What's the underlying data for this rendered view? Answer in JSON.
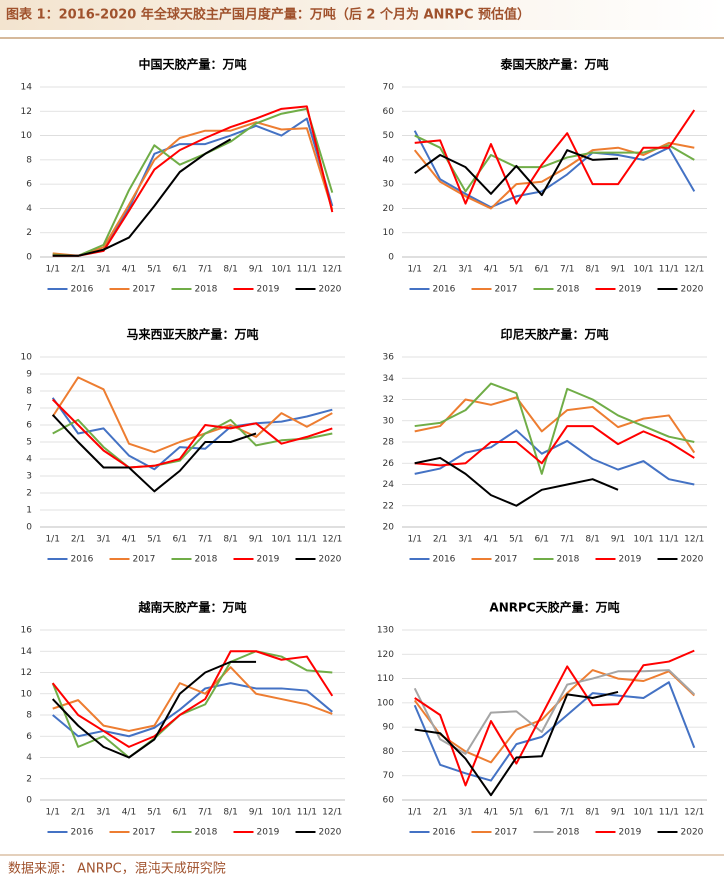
{
  "title": "图表 1：2016-2020 年全球天胶主产国月度产量：万吨（后 2 个月为 ANRPC 预估值）",
  "source": "数据来源： ANRPC，混沌天成研究院",
  "chart_data": [
    {
      "type": "line",
      "title": "中国天胶产量：万吨",
      "categories": [
        "1/1",
        "2/1",
        "3/1",
        "4/1",
        "5/1",
        "6/1",
        "7/1",
        "8/1",
        "9/1",
        "10/1",
        "11/1",
        "12/1"
      ],
      "ylim": [
        0,
        14
      ],
      "yticks": [
        0,
        2,
        4,
        6,
        8,
        10,
        12,
        14
      ],
      "grid": true,
      "legend": "bottom",
      "series": [
        {
          "name": "2016",
          "color": "#4472c4",
          "values": [
            0.2,
            0.1,
            0.6,
            4.0,
            8.5,
            9.3,
            9.3,
            10.0,
            10.8,
            10.0,
            11.4,
            4.2
          ]
        },
        {
          "name": "2017",
          "color": "#ed7d31",
          "values": [
            0.3,
            0.1,
            0.8,
            4.3,
            8.0,
            9.8,
            10.4,
            10.4,
            11.1,
            10.5,
            10.6,
            3.9
          ]
        },
        {
          "name": "2018",
          "color": "#70ad47",
          "values": [
            0.2,
            0.1,
            1.0,
            5.5,
            9.2,
            7.6,
            8.5,
            9.5,
            11.0,
            11.8,
            12.2,
            5.3
          ]
        },
        {
          "name": "2019",
          "color": "#ff0000",
          "values": [
            0.1,
            0.1,
            0.5,
            3.8,
            7.2,
            8.8,
            9.8,
            10.7,
            11.4,
            12.2,
            12.4,
            3.7
          ]
        },
        {
          "name": "2020",
          "color": "#000000",
          "values": [
            0.1,
            0.1,
            0.6,
            1.6,
            4.2,
            7.0,
            8.5,
            9.7,
            null,
            null,
            null,
            null
          ]
        }
      ]
    },
    {
      "type": "line",
      "title": "泰国天胶产量：万吨",
      "categories": [
        "1/1",
        "2/1",
        "3/1",
        "4/1",
        "5/1",
        "6/1",
        "7/1",
        "8/1",
        "9/1",
        "10/1",
        "11/1",
        "12/1"
      ],
      "ylim": [
        0,
        70
      ],
      "yticks": [
        0,
        10,
        20,
        30,
        40,
        50,
        60,
        70
      ],
      "grid": true,
      "legend": "bottom",
      "series": [
        {
          "name": "2016",
          "color": "#4472c4",
          "values": [
            52,
            32,
            26,
            20.5,
            25,
            27,
            34,
            43,
            42,
            40,
            45,
            27
          ]
        },
        {
          "name": "2017",
          "color": "#ed7d31",
          "values": [
            44,
            31,
            25,
            20,
            30,
            31,
            37,
            44,
            45,
            42,
            47,
            45
          ]
        },
        {
          "name": "2018",
          "color": "#70ad47",
          "values": [
            50,
            45,
            27,
            42,
            37,
            37,
            41,
            43,
            43,
            43,
            46,
            40
          ]
        },
        {
          "name": "2019",
          "color": "#ff0000",
          "values": [
            47,
            48,
            22,
            46.5,
            22,
            38,
            51,
            30,
            30,
            45,
            45,
            60.5
          ]
        },
        {
          "name": "2020",
          "color": "#000000",
          "values": [
            34.5,
            42,
            37,
            26,
            37.5,
            25.5,
            44,
            40,
            40.5,
            null,
            null,
            null
          ]
        }
      ]
    },
    {
      "type": "line",
      "title": "马来西亚天胶产量：万吨",
      "categories": [
        "1/1",
        "2/1",
        "3/1",
        "4/1",
        "5/1",
        "6/1",
        "7/1",
        "8/1",
        "9/1",
        "10/1",
        "11/1",
        "12/1"
      ],
      "ylim": [
        0,
        10
      ],
      "yticks": [
        0,
        1,
        2,
        3,
        4,
        5,
        6,
        7,
        8,
        9,
        10
      ],
      "grid": true,
      "legend": "bottom",
      "series": [
        {
          "name": "2016",
          "color": "#4472c4",
          "values": [
            7.6,
            5.5,
            5.8,
            4.2,
            3.4,
            4.7,
            4.6,
            5.9,
            6.1,
            6.2,
            6.5,
            6.9
          ]
        },
        {
          "name": "2017",
          "color": "#ed7d31",
          "values": [
            6.5,
            8.8,
            8.1,
            4.9,
            4.4,
            5.0,
            5.5,
            6.0,
            5.3,
            6.7,
            5.9,
            6.7
          ]
        },
        {
          "name": "2018",
          "color": "#70ad47",
          "values": [
            5.5,
            6.3,
            4.7,
            3.5,
            3.6,
            3.9,
            5.5,
            6.3,
            4.8,
            5.1,
            5.2,
            5.5
          ]
        },
        {
          "name": "2019",
          "color": "#ff0000",
          "values": [
            7.5,
            6.0,
            4.5,
            3.5,
            3.6,
            4.0,
            6.0,
            5.8,
            6.1,
            4.9,
            5.3,
            5.8
          ]
        },
        {
          "name": "2020",
          "color": "#000000",
          "values": [
            6.6,
            5.0,
            3.5,
            3.5,
            2.1,
            3.3,
            5.0,
            5.0,
            5.5,
            null,
            null,
            null
          ]
        }
      ]
    },
    {
      "type": "line",
      "title": "印尼天胶产量：万吨",
      "categories": [
        "1/1",
        "2/1",
        "3/1",
        "4/1",
        "5/1",
        "6/1",
        "7/1",
        "8/1",
        "9/1",
        "10/1",
        "11/1",
        "12/1"
      ],
      "ylim": [
        20,
        36
      ],
      "yticks": [
        20,
        22,
        24,
        26,
        28,
        30,
        32,
        34,
        36
      ],
      "grid": true,
      "legend": "bottom",
      "series": [
        {
          "name": "2016",
          "color": "#4472c4",
          "values": [
            25,
            25.5,
            27,
            27.5,
            29.1,
            26.9,
            28.1,
            26.4,
            25.4,
            26.2,
            24.5,
            24
          ]
        },
        {
          "name": "2017",
          "color": "#ed7d31",
          "values": [
            29,
            29.5,
            32,
            31.5,
            32.2,
            29,
            31,
            31.3,
            29.4,
            30.2,
            30.5,
            27
          ]
        },
        {
          "name": "2018",
          "color": "#70ad47",
          "values": [
            29.5,
            29.8,
            31,
            33.5,
            32.6,
            25,
            33,
            32,
            30.5,
            29.5,
            28.5,
            28
          ]
        },
        {
          "name": "2019",
          "color": "#ff0000",
          "values": [
            26,
            25.8,
            26,
            28,
            28,
            26,
            29.5,
            29.5,
            27.8,
            29,
            28,
            26.5
          ]
        },
        {
          "name": "2020",
          "color": "#000000",
          "values": [
            26,
            26.5,
            25,
            23,
            22,
            23.5,
            24,
            24.5,
            23.5,
            null,
            null,
            null
          ]
        }
      ]
    },
    {
      "type": "line",
      "title": "越南天胶产量：万吨",
      "categories": [
        "1/1",
        "2/1",
        "3/1",
        "4/1",
        "5/1",
        "6/1",
        "7/1",
        "8/1",
        "9/1",
        "10/1",
        "11/1",
        "12/1"
      ],
      "ylim": [
        0,
        16
      ],
      "yticks": [
        0,
        2,
        4,
        6,
        8,
        10,
        12,
        14,
        16
      ],
      "grid": true,
      "legend": "bottom",
      "series": [
        {
          "name": "2016",
          "color": "#4472c4",
          "values": [
            8,
            6,
            6.5,
            6,
            6.8,
            8.5,
            10.5,
            11,
            10.5,
            10.5,
            10.3,
            8.3
          ]
        },
        {
          "name": "2017",
          "color": "#ed7d31",
          "values": [
            8.6,
            9.4,
            7,
            6.5,
            7,
            11,
            10,
            12.5,
            10,
            9.5,
            9,
            8.1
          ]
        },
        {
          "name": "2018",
          "color": "#70ad47",
          "values": [
            11,
            5,
            6,
            4,
            5.8,
            8,
            9,
            13,
            14,
            13.5,
            12.2,
            12
          ]
        },
        {
          "name": "2019",
          "color": "#ff0000",
          "values": [
            11,
            8,
            6.5,
            5,
            6,
            8,
            9.5,
            14,
            14,
            13.2,
            13.5,
            9.8
          ]
        },
        {
          "name": "2020",
          "color": "#000000",
          "values": [
            9.5,
            7,
            5,
            4,
            5.7,
            10,
            12,
            13,
            13,
            null,
            null,
            null
          ]
        }
      ]
    },
    {
      "type": "line",
      "title": "ANRPC天胶产量：万吨",
      "categories": [
        "1/1",
        "2/1",
        "3/1",
        "4/1",
        "5/1",
        "6/1",
        "7/1",
        "8/1",
        "9/1",
        "10/1",
        "11/1",
        "12/1"
      ],
      "ylim": [
        60,
        130
      ],
      "yticks": [
        60,
        70,
        80,
        90,
        100,
        110,
        120,
        130
      ],
      "grid": true,
      "legend": "bottom",
      "series": [
        {
          "name": "2016",
          "color": "#4472c4",
          "values": [
            99,
            74.5,
            71,
            68,
            83,
            86,
            95,
            104,
            103,
            102,
            108.5,
            81.5
          ]
        },
        {
          "name": "2017",
          "color": "#ed7d31",
          "values": [
            101,
            87,
            80,
            75.5,
            89,
            93,
            104,
            113.5,
            110,
            109,
            113,
            103
          ]
        },
        {
          "name": "2018",
          "color": "#a5a5a5",
          "values": [
            106,
            85,
            79,
            96,
            96.5,
            88,
            107.5,
            110,
            113,
            113,
            113.5,
            103.5
          ]
        },
        {
          "name": "2019",
          "color": "#ff0000",
          "values": [
            102,
            95,
            66,
            92.5,
            75,
            95,
            115,
            99,
            99.5,
            115.5,
            117,
            121.5
          ]
        },
        {
          "name": "2020",
          "color": "#000000",
          "values": [
            89,
            87.5,
            77,
            62,
            77.5,
            78,
            103.5,
            102,
            104.5,
            null,
            null,
            null
          ]
        }
      ]
    }
  ]
}
